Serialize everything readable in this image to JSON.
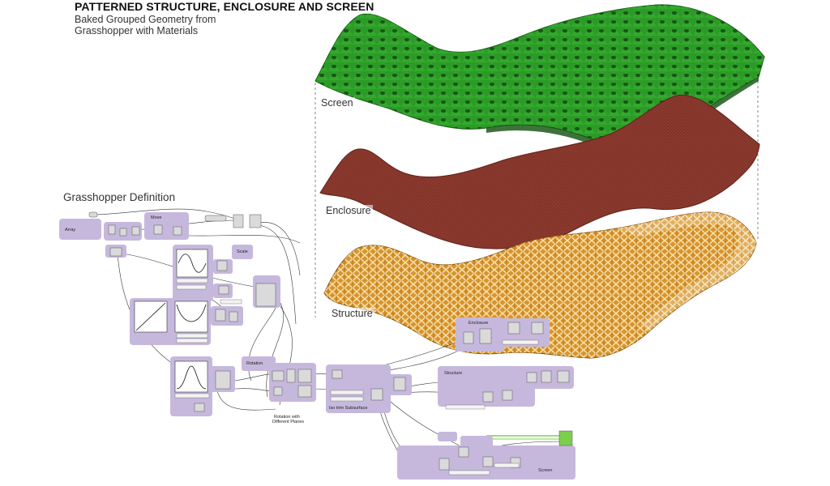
{
  "header": {
    "title": "PATTERNED STRUCTURE, ENCLOSURE AND SCREEN",
    "subtitle_line1": "Baked Grouped Geometry from",
    "subtitle_line2": "Grasshopper with Materials"
  },
  "layers": {
    "screen_label": "Screen",
    "enclosure_label": "Enclosure",
    "structure_label": "Structure"
  },
  "definition": {
    "title": "Grasshopper Definition",
    "groups": {
      "array": "Array",
      "move": "Move",
      "scale": "Scale",
      "rotation": "Rotation",
      "rotation_note_line1": "Rotation with",
      "rotation_note_line2": "Different Planes",
      "subsurface": "Iso trim Subsurface",
      "enclosure": "Enclosure",
      "structure": "Structure",
      "screen": "Screen"
    }
  },
  "colors": {
    "screen": "#2f9a2a",
    "enclosure": "#8c3a2e",
    "structure": "#d8952a",
    "group_fill": "#c6b8dc",
    "panel_fill": "#dcdcdc",
    "highlight_wire": "#7ccf4c"
  }
}
